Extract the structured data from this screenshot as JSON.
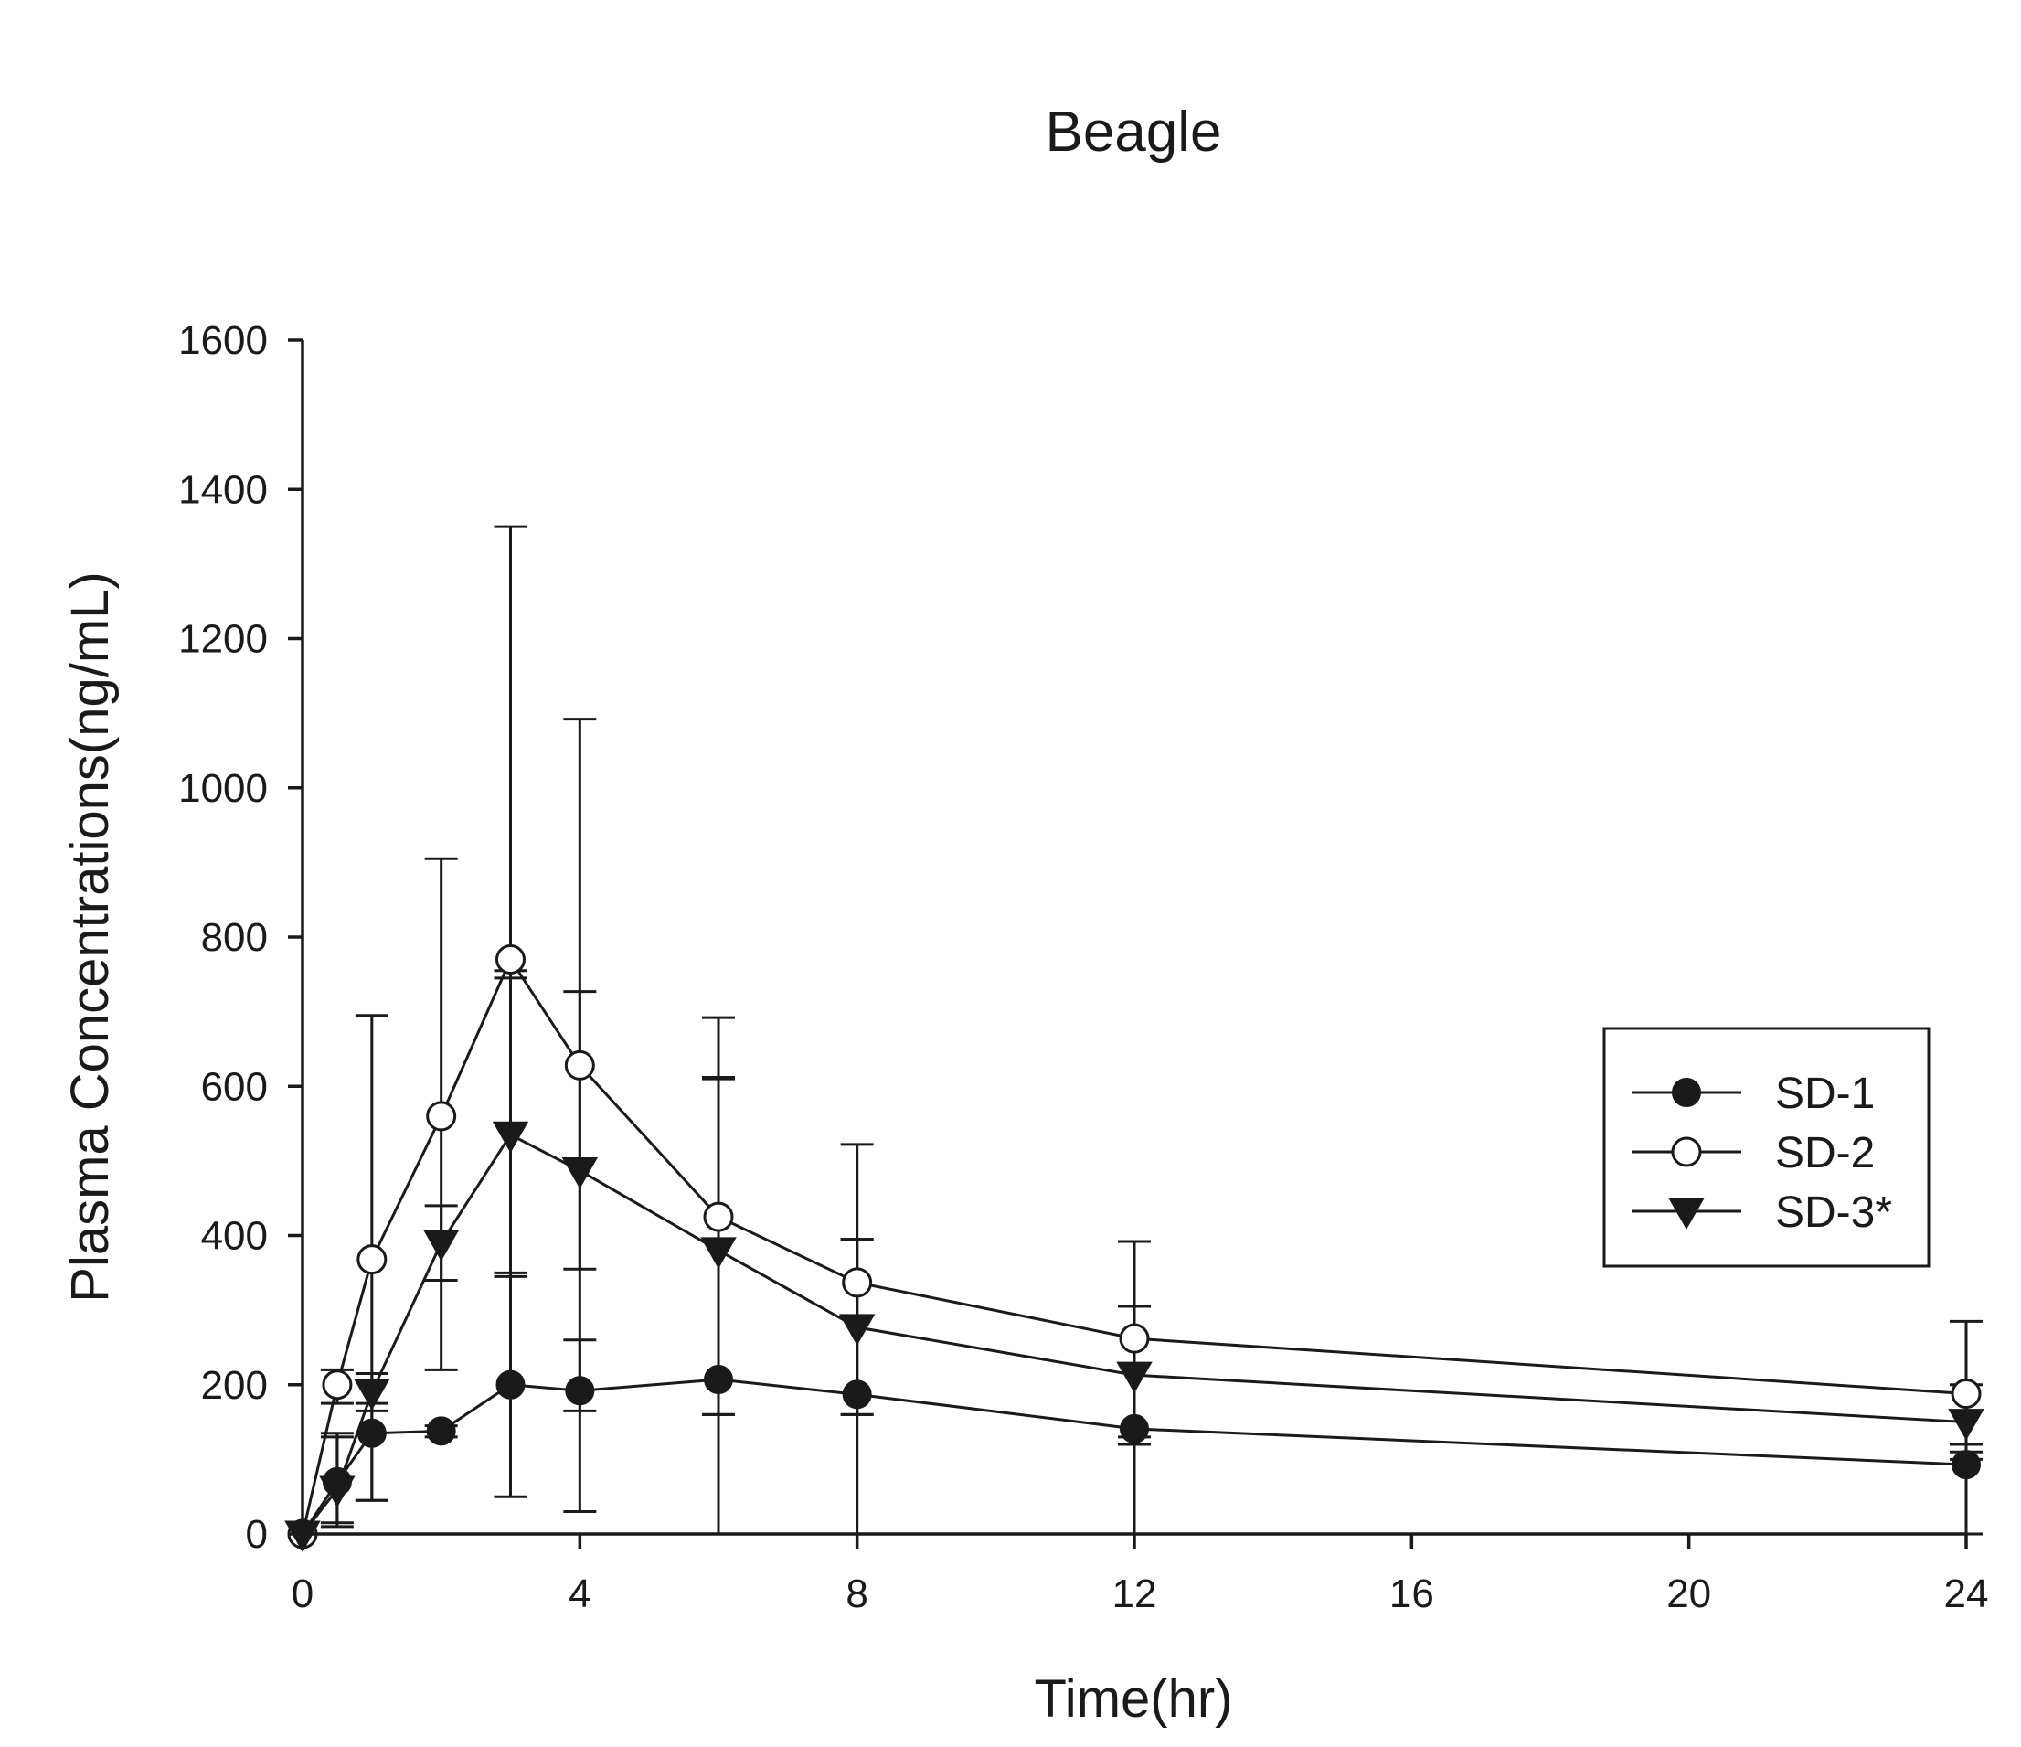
{
  "chart_data": {
    "type": "line",
    "title": "Beagle",
    "xlabel": "Time(hr)",
    "ylabel": "Plasma Concentrations(ng/mL)",
    "xlim": [
      0,
      24
    ],
    "ylim": [
      0,
      1600
    ],
    "xticks": [
      0,
      4,
      8,
      12,
      16,
      20,
      24
    ],
    "yticks": [
      0,
      200,
      400,
      600,
      800,
      1000,
      1200,
      1400,
      1600
    ],
    "grid": false,
    "legend_position": "right",
    "series": [
      {
        "name": "SD-1",
        "marker": "filled-circle",
        "x": [
          0,
          0.5,
          1,
          2,
          3,
          4,
          6,
          8,
          12,
          24
        ],
        "values": [
          0,
          70,
          135,
          138,
          200,
          192,
          207,
          187,
          141,
          93
        ],
        "err_upper": [
          0,
          135,
          175,
          145,
          350,
          260,
          610,
          395,
          305,
          120
        ],
        "err_lower": [
          0,
          10,
          45,
          130,
          50,
          30,
          0,
          0,
          0,
          0
        ]
      },
      {
        "name": "SD-2",
        "marker": "open-circle",
        "x": [
          0,
          0.5,
          1,
          2,
          3,
          4,
          6,
          8,
          12,
          24
        ],
        "values": [
          0,
          200,
          368,
          560,
          770,
          628,
          425,
          337,
          262,
          188
        ],
        "err_upper": [
          0,
          220,
          695,
          905,
          1350,
          1092,
          692,
          522,
          392,
          285
        ],
        "err_lower": [
          0,
          175,
          45,
          220,
          745,
          165,
          160,
          160,
          130,
          100
        ]
      },
      {
        "name": "SD-3*",
        "marker": "filled-triangle-down",
        "x": [
          0,
          0.5,
          1,
          2,
          3,
          4,
          6,
          8,
          12,
          24
        ],
        "values": [
          0,
          60,
          190,
          390,
          535,
          487,
          380,
          277,
          213,
          150
        ],
        "err_upper": [
          0,
          130,
          215,
          440,
          755,
          727,
          612,
          395,
          305,
          200
        ],
        "err_lower": [
          0,
          15,
          165,
          340,
          345,
          355,
          160,
          160,
          120,
          110
        ]
      }
    ]
  }
}
